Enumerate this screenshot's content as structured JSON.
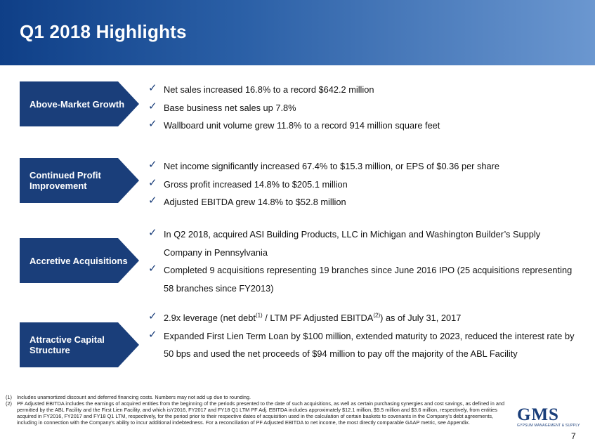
{
  "header": {
    "title": "Q1 2018 Highlights"
  },
  "sections": [
    {
      "category": "Above-Market Growth",
      "bullets": [
        "Net sales increased 16.8% to a record $642.2 million",
        "Base business net sales up 7.8%",
        "Wallboard unit volume grew 11.8% to a record 914 million square feet"
      ]
    },
    {
      "category": "Continued Profit Improvement",
      "bullets": [
        "Net income significantly increased 67.4% to $15.3 million, or EPS of $0.36 per share",
        "Gross profit increased 14.8% to $205.1 million",
        "Adjusted EBITDA grew 14.8% to $52.8 million"
      ]
    },
    {
      "category": "Accretive Acquisitions",
      "bullets": [
        "In Q2 2018, acquired ASI Building Products, LLC  in Michigan and Washington Builder’s Supply Company in Pennsylvania",
        "Completed 9 acquisitions representing 19 branches since June 2016 IPO (25 acquisitions representing 58 branches since FY2013)"
      ]
    },
    {
      "category": "Attractive Capital Structure",
      "bullets": [
        {
          "part1": "2.9x leverage (net debt",
          "sup1": "(1)",
          "part2": " / LTM PF Adjusted EBITDA",
          "sup2": "(2)",
          "part3": ") as of July 31, 2017"
        },
        "Expanded First Lien Term Loan by $100 million, extended maturity to 2023, reduced the interest rate by 50 bps and used the net proceeds of $94 million to pay off the majority of the ABL Facility"
      ]
    }
  ],
  "footnotes": [
    {
      "num": "(1)",
      "text": "Includes unamortized discount and deferred financing costs. Numbers may not add up due to rounding."
    },
    {
      "num": "(2)",
      "text": "PF Adjusted EBITDA includes the earnings of acquired entities from the beginning of the periods presented to the date of such acquisitions, as well as certain purchasing synergies and cost savings, as defined in and permitted by the ABL Facility and the First Lien Facility, and which isY2016, FY2017 and FY18 Q1 LTM PF Adj. EBITDA includes approximately $12.1 million, $9.5 million and $3.6 million, respectively, from entities acquired in FY2016, FY2017 and FY18 Q1 LTM, respectively, for the period prior to their respective dates of acquisition used in the calculation of certain baskets to covenants in the Company's debt agreements, including in connection with the Company's ability to incur additional indebtedness. For a reconciliation of PF Adjusted EBITDA to net income, the most directly comparable GAAP metric, see Appendix."
    }
  ],
  "logo": {
    "name": "GMS",
    "tagline": "GYPSUM MANAGEMENT & SUPPLY"
  },
  "page_number": "7",
  "colors": {
    "header_dark": "#0f3f87",
    "header_light": "#6b97d0",
    "arrow_fill": "#1a3e7a",
    "check": "#1a3e7a"
  },
  "icons": {
    "bullet": "check-icon",
    "category": "arrow-chevron-shape"
  }
}
